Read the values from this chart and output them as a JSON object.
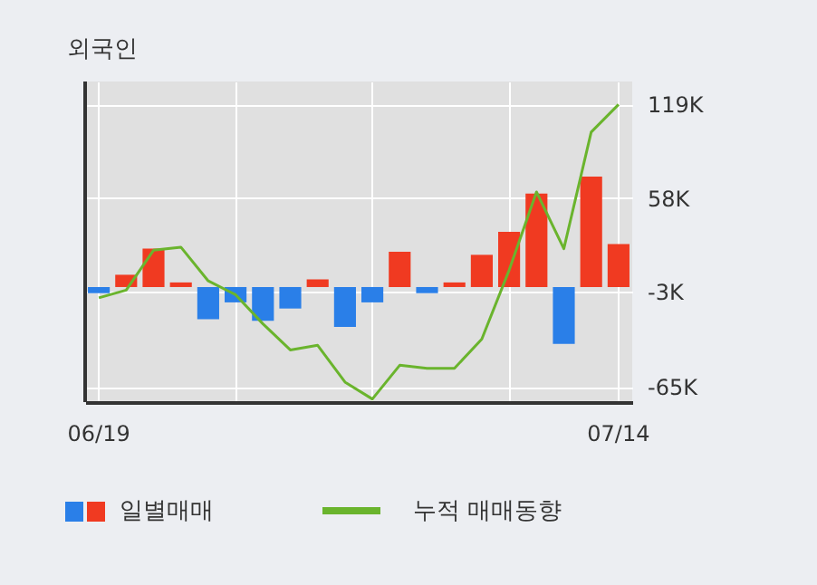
{
  "chart_data": {
    "type": "bar",
    "title": "외국인",
    "categories": [
      "06/19",
      null,
      null,
      null,
      null,
      null,
      null,
      null,
      null,
      null,
      null,
      null,
      null,
      null,
      null,
      null,
      null,
      null,
      null,
      "07/14"
    ],
    "series": [
      {
        "name": "일별매매",
        "colors": [
          "#2a7fe8",
          "#f03a21",
          "#f03a21",
          "#f03a21",
          "#2a7fe8",
          "#2a7fe8",
          "#2a7fe8",
          "#2a7fe8",
          "#f03a21",
          "#2a7fe8",
          "#2a7fe8",
          "#f03a21",
          "#2a7fe8",
          "#f03a21",
          "#f03a21",
          "#f03a21",
          "#f03a21",
          "#2a7fe8",
          "#f03a21",
          "#f03a21"
        ],
        "values": [
          -4,
          8,
          25,
          3,
          -21,
          -10,
          -22,
          -14,
          5,
          -26,
          -10,
          23,
          -4,
          3,
          21,
          36,
          61,
          -37,
          72,
          28
        ]
      },
      {
        "name": "누적 매매동향",
        "type": "line",
        "color": "#6ab42d",
        "values": [
          -7,
          -2,
          24,
          26,
          4,
          -5,
          -24,
          -41,
          -38,
          -62,
          -73,
          -51,
          -53,
          -53,
          -34,
          11,
          62,
          25,
          101,
          119
        ]
      }
    ],
    "ylim": [
      -75,
      134
    ],
    "yticks": [
      {
        "value": -65,
        "label": "-65K"
      },
      {
        "value": -3,
        "label": "-3K"
      },
      {
        "value": 58,
        "label": "58K"
      },
      {
        "value": 119,
        "label": "119K"
      }
    ],
    "grid": true,
    "legend": "bottom"
  }
}
